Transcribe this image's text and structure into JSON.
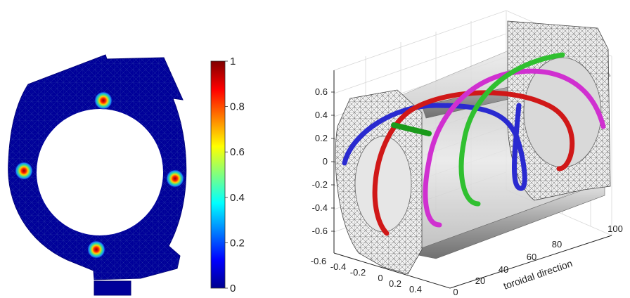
{
  "left_panel": {
    "colorbar": {
      "ticks": [
        "0",
        "0.2",
        "0.4",
        "0.6",
        "0.8",
        "1"
      ],
      "range": [
        0,
        1
      ],
      "colormap": "jet"
    },
    "hotspots": 4
  },
  "right_panel": {
    "y_ticks": [
      "0.6",
      "0.4",
      "0.2",
      "0",
      "-0.2",
      "-0.4",
      "-0.6"
    ],
    "x_ticks": [
      "-0.6",
      "-0.4",
      "-0.2",
      "0",
      "0.2",
      "0.4"
    ],
    "toroidal_ticks": [
      "0",
      "20",
      "40",
      "60",
      "80",
      "100"
    ],
    "toroidal_label": "toroidal direction",
    "curve_colors": [
      "#2a2ad0",
      "#d01818",
      "#d030d0",
      "#30c030",
      "#1a9a1a"
    ]
  }
}
